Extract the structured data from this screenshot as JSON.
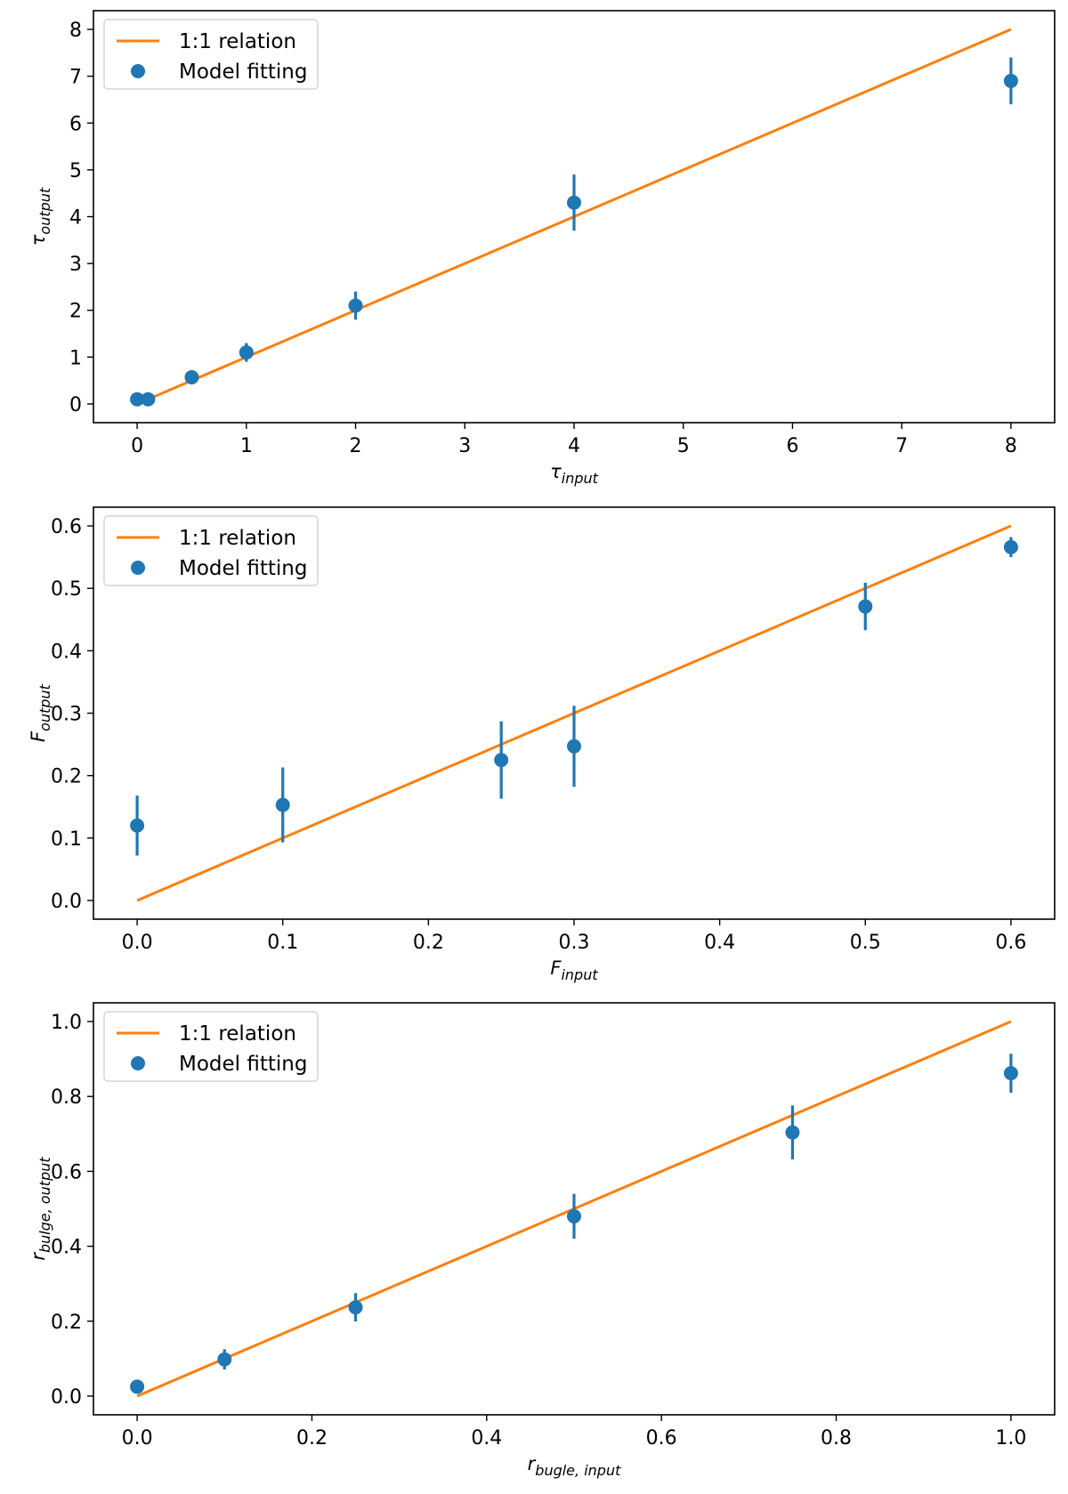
{
  "colors": {
    "line": "#ff7f0e",
    "marker": "#1f77b4"
  },
  "chart_data": [
    {
      "type": "scatter",
      "id": "tau",
      "xlabel": {
        "main": "τ",
        "sub": "input"
      },
      "ylabel": {
        "main": "τ",
        "sub": "output"
      },
      "xlim": [
        -0.4,
        8.4
      ],
      "ylim": [
        -0.4,
        8.4
      ],
      "xticks": [
        0,
        1,
        2,
        3,
        4,
        5,
        6,
        7,
        8
      ],
      "yticks": [
        0,
        1,
        2,
        3,
        4,
        5,
        6,
        7,
        8
      ],
      "xtick_labels": [
        "0",
        "1",
        "2",
        "3",
        "4",
        "5",
        "6",
        "7",
        "8"
      ],
      "ytick_labels": [
        "0",
        "1",
        "2",
        "3",
        "4",
        "5",
        "6",
        "7",
        "8"
      ],
      "legend": {
        "position": "top-left",
        "line_label": "1:1 relation",
        "points_label": "Model fitting"
      },
      "line": {
        "name": "1:1 relation",
        "x": [
          0,
          8
        ],
        "y": [
          0,
          8
        ]
      },
      "points": {
        "name": "Model fitting",
        "x": [
          0,
          0.1,
          0.5,
          1,
          2,
          4,
          8
        ],
        "y": [
          0.1,
          0.1,
          0.57,
          1.1,
          2.1,
          4.3,
          6.9
        ],
        "yerr": [
          0.05,
          0.05,
          0.1,
          0.2,
          0.3,
          0.6,
          0.5
        ]
      }
    },
    {
      "type": "scatter",
      "id": "F",
      "xlabel": {
        "main": "F",
        "sub": "input"
      },
      "ylabel": {
        "main": "F",
        "sub": "output"
      },
      "xlim": [
        -0.03,
        0.63
      ],
      "ylim": [
        -0.03,
        0.63
      ],
      "xticks": [
        0,
        0.1,
        0.2,
        0.3,
        0.4,
        0.5,
        0.6
      ],
      "yticks": [
        0,
        0.1,
        0.2,
        0.3,
        0.4,
        0.5,
        0.6
      ],
      "xtick_labels": [
        "0.0",
        "0.1",
        "0.2",
        "0.3",
        "0.4",
        "0.5",
        "0.6"
      ],
      "ytick_labels": [
        "0.0",
        "0.1",
        "0.2",
        "0.3",
        "0.4",
        "0.5",
        "0.6"
      ],
      "legend": {
        "position": "top-left",
        "line_label": "1:1 relation",
        "points_label": "Model fitting"
      },
      "line": {
        "name": "1:1 relation",
        "x": [
          0,
          0.6
        ],
        "y": [
          0,
          0.6
        ]
      },
      "points": {
        "name": "Model fitting",
        "x": [
          0,
          0.1,
          0.25,
          0.3,
          0.5,
          0.6
        ],
        "y": [
          0.12,
          0.153,
          0.225,
          0.247,
          0.471,
          0.566
        ],
        "yerr": [
          0.048,
          0.06,
          0.062,
          0.065,
          0.038,
          0.016
        ]
      }
    },
    {
      "type": "scatter",
      "id": "rbulge",
      "xlabel": {
        "main": "r",
        "sub": "bugle, input"
      },
      "ylabel": {
        "main": "r",
        "sub": "bulge, output"
      },
      "xlim": [
        -0.05,
        1.05
      ],
      "ylim": [
        -0.05,
        1.05
      ],
      "xticks": [
        0,
        0.2,
        0.4,
        0.6,
        0.8,
        1.0
      ],
      "yticks": [
        0,
        0.2,
        0.4,
        0.6,
        0.8,
        1.0
      ],
      "xtick_labels": [
        "0.0",
        "0.2",
        "0.4",
        "0.6",
        "0.8",
        "1.0"
      ],
      "ytick_labels": [
        "0.0",
        "0.2",
        "0.4",
        "0.6",
        "0.8",
        "1.0"
      ],
      "legend": {
        "position": "top-left",
        "line_label": "1:1 relation",
        "points_label": "Model fitting"
      },
      "line": {
        "name": "1:1 relation",
        "x": [
          0,
          1
        ],
        "y": [
          0,
          1
        ]
      },
      "points": {
        "name": "Model fitting",
        "x": [
          0,
          0.1,
          0.25,
          0.5,
          0.75,
          1.0
        ],
        "y": [
          0.025,
          0.098,
          0.237,
          0.48,
          0.704,
          0.862
        ],
        "yerr": [
          0.005,
          0.027,
          0.038,
          0.06,
          0.072,
          0.052
        ]
      }
    }
  ]
}
